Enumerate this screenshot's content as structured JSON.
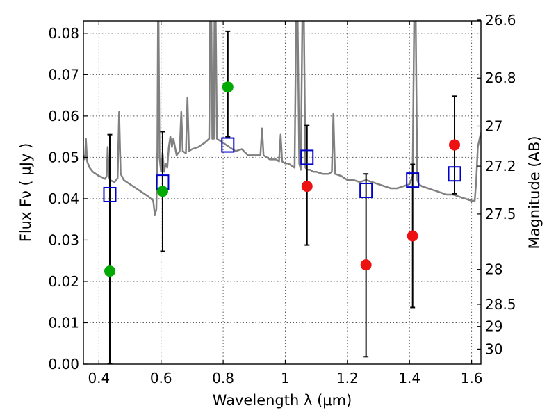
{
  "chart_data": {
    "type": "scatter",
    "title": "",
    "xlabel": "Wavelength  λ (μm)",
    "ylabel": "Flux  Fν  ( μJy )",
    "y2label": "Magnitude (AB)",
    "xlim": [
      0.35,
      1.63
    ],
    "ylim": [
      0.0,
      0.083
    ],
    "grid": true,
    "legend": "none",
    "x_ticks": [
      {
        "v": 0.4,
        "label": "0.4"
      },
      {
        "v": 0.6,
        "label": "0.6"
      },
      {
        "v": 0.8,
        "label": "0.8"
      },
      {
        "v": 1.0,
        "label": "1"
      },
      {
        "v": 1.2,
        "label": "1.2"
      },
      {
        "v": 1.4,
        "label": "1.4"
      },
      {
        "v": 1.6,
        "label": "1.6"
      }
    ],
    "y_ticks": [
      {
        "v": 0.0,
        "label": "0.00"
      },
      {
        "v": 0.01,
        "label": "0.01"
      },
      {
        "v": 0.02,
        "label": "0.02"
      },
      {
        "v": 0.03,
        "label": "0.03"
      },
      {
        "v": 0.04,
        "label": "0.04"
      },
      {
        "v": 0.05,
        "label": "0.05"
      },
      {
        "v": 0.06,
        "label": "0.06"
      },
      {
        "v": 0.07,
        "label": "0.07"
      },
      {
        "v": 0.08,
        "label": "0.08"
      }
    ],
    "y2_ticks": [
      {
        "mag": 26.6,
        "label": "26.6"
      },
      {
        "mag": 26.8,
        "label": "26.8"
      },
      {
        "mag": 27.0,
        "label": "27"
      },
      {
        "mag": 27.2,
        "label": "27.2"
      },
      {
        "mag": 27.5,
        "label": "27.5"
      },
      {
        "mag": 28.0,
        "label": "28"
      },
      {
        "mag": 28.5,
        "label": "28.5"
      },
      {
        "mag": 29.0,
        "label": "29"
      },
      {
        "mag": 30.0,
        "label": "30"
      }
    ],
    "series": [
      {
        "kind": "line",
        "color": "#808080",
        "points": [
          [
            0.35,
            0.0505
          ],
          [
            0.355,
            0.0495
          ],
          [
            0.358,
            0.0545
          ],
          [
            0.362,
            0.049
          ],
          [
            0.37,
            0.0475
          ],
          [
            0.38,
            0.0465
          ],
          [
            0.39,
            0.046
          ],
          [
            0.4,
            0.0455
          ],
          [
            0.41,
            0.0452
          ],
          [
            0.42,
            0.0448
          ],
          [
            0.425,
            0.0455
          ],
          [
            0.428,
            0.0525
          ],
          [
            0.432,
            0.0455
          ],
          [
            0.436,
            0.0445
          ],
          [
            0.45,
            0.044
          ],
          [
            0.46,
            0.045
          ],
          [
            0.465,
            0.061
          ],
          [
            0.47,
            0.046
          ],
          [
            0.48,
            0.0445
          ],
          [
            0.5,
            0.0435
          ],
          [
            0.52,
            0.0425
          ],
          [
            0.54,
            0.0415
          ],
          [
            0.56,
            0.0405
          ],
          [
            0.575,
            0.0395
          ],
          [
            0.58,
            0.036
          ],
          [
            0.585,
            0.0375
          ],
          [
            0.588,
            0.052
          ],
          [
            0.59,
            0.083
          ],
          [
            0.592,
            0.083
          ],
          [
            0.595,
            0.05
          ],
          [
            0.6,
            0.0465
          ],
          [
            0.605,
            0.051
          ],
          [
            0.61,
            0.0465
          ],
          [
            0.615,
            0.0485
          ],
          [
            0.62,
            0.0475
          ],
          [
            0.625,
            0.0525
          ],
          [
            0.63,
            0.055
          ],
          [
            0.635,
            0.0525
          ],
          [
            0.64,
            0.0545
          ],
          [
            0.645,
            0.0525
          ],
          [
            0.65,
            0.0505
          ],
          [
            0.66,
            0.0515
          ],
          [
            0.665,
            0.061
          ],
          [
            0.67,
            0.0515
          ],
          [
            0.68,
            0.051
          ],
          [
            0.685,
            0.0645
          ],
          [
            0.69,
            0.0515
          ],
          [
            0.7,
            0.052
          ],
          [
            0.72,
            0.0525
          ],
          [
            0.74,
            0.0535
          ],
          [
            0.755,
            0.0545
          ],
          [
            0.758,
            0.083
          ],
          [
            0.762,
            0.083
          ],
          [
            0.765,
            0.0545
          ],
          [
            0.77,
            0.0545
          ],
          [
            0.772,
            0.083
          ],
          [
            0.776,
            0.083
          ],
          [
            0.78,
            0.0545
          ],
          [
            0.79,
            0.054
          ],
          [
            0.8,
            0.0535
          ],
          [
            0.82,
            0.0525
          ],
          [
            0.84,
            0.0515
          ],
          [
            0.86,
            0.052
          ],
          [
            0.88,
            0.0505
          ],
          [
            0.9,
            0.0505
          ],
          [
            0.92,
            0.0505
          ],
          [
            0.925,
            0.057
          ],
          [
            0.93,
            0.0505
          ],
          [
            0.95,
            0.0495
          ],
          [
            0.97,
            0.0495
          ],
          [
            0.98,
            0.049
          ],
          [
            0.985,
            0.0555
          ],
          [
            0.99,
            0.049
          ],
          [
            1.0,
            0.0485
          ],
          [
            1.01,
            0.0485
          ],
          [
            1.02,
            0.048
          ],
          [
            1.03,
            0.0475
          ],
          [
            1.035,
            0.083
          ],
          [
            1.04,
            0.083
          ],
          [
            1.045,
            0.0485
          ],
          [
            1.05,
            0.047
          ],
          [
            1.055,
            0.083
          ],
          [
            1.06,
            0.083
          ],
          [
            1.065,
            0.0475
          ],
          [
            1.07,
            0.047
          ],
          [
            1.08,
            0.047
          ],
          [
            1.09,
            0.0465
          ],
          [
            1.1,
            0.0465
          ],
          [
            1.12,
            0.046
          ],
          [
            1.14,
            0.046
          ],
          [
            1.15,
            0.0465
          ],
          [
            1.155,
            0.0605
          ],
          [
            1.16,
            0.046
          ],
          [
            1.18,
            0.0455
          ],
          [
            1.2,
            0.0445
          ],
          [
            1.22,
            0.0445
          ],
          [
            1.24,
            0.044
          ],
          [
            1.26,
            0.0445
          ],
          [
            1.28,
            0.044
          ],
          [
            1.3,
            0.0435
          ],
          [
            1.32,
            0.043
          ],
          [
            1.34,
            0.0425
          ],
          [
            1.36,
            0.0425
          ],
          [
            1.38,
            0.043
          ],
          [
            1.4,
            0.0435
          ],
          [
            1.41,
            0.0455
          ],
          [
            1.415,
            0.083
          ],
          [
            1.42,
            0.083
          ],
          [
            1.425,
            0.0445
          ],
          [
            1.43,
            0.0435
          ],
          [
            1.44,
            0.043
          ],
          [
            1.46,
            0.0425
          ],
          [
            1.48,
            0.042
          ],
          [
            1.5,
            0.0415
          ],
          [
            1.52,
            0.041
          ],
          [
            1.54,
            0.041
          ],
          [
            1.56,
            0.0405
          ],
          [
            1.58,
            0.04
          ],
          [
            1.6,
            0.0395
          ],
          [
            1.61,
            0.0395
          ],
          [
            1.615,
            0.0445
          ],
          [
            1.62,
            0.0525
          ],
          [
            1.63,
            0.056
          ]
        ]
      },
      {
        "kind": "errorbar",
        "color": "#000000",
        "points": [
          {
            "x": 0.435,
            "lo": 0.0,
            "hi": 0.0555
          },
          {
            "x": 0.605,
            "lo": 0.0273,
            "hi": 0.0562
          },
          {
            "x": 0.815,
            "lo": 0.055,
            "hi": 0.0805
          },
          {
            "x": 1.07,
            "lo": 0.0288,
            "hi": 0.0577
          },
          {
            "x": 1.26,
            "lo": 0.0018,
            "hi": 0.046
          },
          {
            "x": 1.41,
            "lo": 0.0137,
            "hi": 0.0483
          },
          {
            "x": 1.545,
            "lo": 0.0412,
            "hi": 0.0648
          }
        ]
      },
      {
        "kind": "square",
        "color": "#0000cc",
        "points": [
          [
            0.435,
            0.041
          ],
          [
            0.605,
            0.044
          ],
          [
            0.815,
            0.053
          ],
          [
            1.07,
            0.05
          ],
          [
            1.26,
            0.042
          ],
          [
            1.41,
            0.0445
          ],
          [
            1.545,
            0.046
          ]
        ]
      },
      {
        "kind": "circle",
        "color": "#00aa00",
        "points": [
          [
            0.435,
            0.0225
          ],
          [
            0.605,
            0.0418
          ],
          [
            0.815,
            0.067
          ]
        ]
      },
      {
        "kind": "circle",
        "color": "#ee1111",
        "points": [
          [
            1.07,
            0.043
          ],
          [
            1.26,
            0.024
          ],
          [
            1.41,
            0.031
          ],
          [
            1.545,
            0.053
          ]
        ]
      }
    ]
  }
}
